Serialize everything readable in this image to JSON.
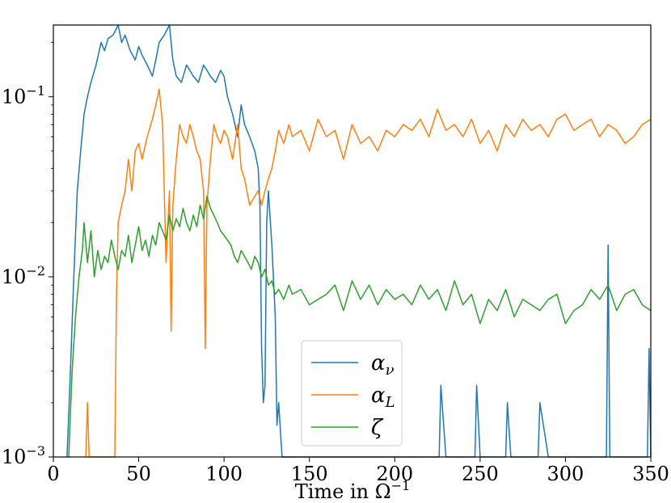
{
  "chart_data": {
    "type": "line",
    "title": "",
    "xlabel": "Time in Ω",
    "xlabel_exponent": "−1",
    "ylabel": "",
    "xlim": [
      0,
      350
    ],
    "ylim": [
      0.001,
      0.25
    ],
    "yscale": "log",
    "grid": false,
    "legend_position": "lower-center",
    "xticks": [
      {
        "value": 0,
        "label": "0"
      },
      {
        "value": 50,
        "label": "50"
      },
      {
        "value": 100,
        "label": "100"
      },
      {
        "value": 150,
        "label": "150"
      },
      {
        "value": 200,
        "label": "200"
      },
      {
        "value": 250,
        "label": "250"
      },
      {
        "value": 300,
        "label": "300"
      },
      {
        "value": 350,
        "label": "350"
      }
    ],
    "yticks": [
      {
        "value": 0.001,
        "base": "10",
        "exp": "−3"
      },
      {
        "value": 0.01,
        "base": "10",
        "exp": "−2"
      },
      {
        "value": 0.1,
        "base": "10",
        "exp": "−1"
      }
    ],
    "series": [
      {
        "name": "α",
        "name_sub": "ν",
        "color": "#1f77b4",
        "x": [
          8,
          10,
          12,
          14,
          16,
          18,
          20,
          22,
          25,
          28,
          30,
          32,
          35,
          38,
          40,
          42,
          45,
          48,
          50,
          52,
          55,
          58,
          60,
          62,
          65,
          68,
          70,
          72,
          75,
          78,
          80,
          82,
          85,
          88,
          90,
          92,
          95,
          98,
          100,
          102,
          105,
          108,
          110,
          112,
          115,
          118,
          120,
          121,
          122,
          123,
          124,
          125,
          126,
          128,
          130,
          131,
          132,
          134,
          136,
          140,
          145,
          150,
          160,
          170,
          180,
          190,
          200,
          210,
          220,
          226,
          227,
          230,
          240,
          247,
          248,
          250,
          260,
          265,
          266,
          268,
          270,
          280,
          284,
          285,
          290,
          300,
          310,
          320,
          324,
          325,
          326,
          330,
          340,
          348,
          349,
          350
        ],
        "y": [
          0.001,
          0.003,
          0.01,
          0.03,
          0.05,
          0.08,
          0.1,
          0.12,
          0.15,
          0.2,
          0.18,
          0.21,
          0.22,
          0.25,
          0.2,
          0.22,
          0.18,
          0.16,
          0.19,
          0.17,
          0.15,
          0.13,
          0.16,
          0.2,
          0.22,
          0.25,
          0.16,
          0.13,
          0.12,
          0.15,
          0.14,
          0.13,
          0.12,
          0.15,
          0.14,
          0.13,
          0.12,
          0.14,
          0.13,
          0.1,
          0.08,
          0.06,
          0.09,
          0.07,
          0.06,
          0.05,
          0.04,
          0.025,
          0.004,
          0.002,
          0.0025,
          0.02,
          0.03,
          0.015,
          0.006,
          0.0015,
          0.002,
          0.001,
          0.001,
          0.001,
          0.001,
          0.001,
          0.001,
          0.001,
          0.001,
          0.001,
          0.001,
          0.001,
          0.001,
          0.001,
          0.0025,
          0.001,
          0.001,
          0.001,
          0.0025,
          0.001,
          0.001,
          0.001,
          0.002,
          0.001,
          0.001,
          0.001,
          0.001,
          0.002,
          0.001,
          0.001,
          0.001,
          0.001,
          0.001,
          0.015,
          0.001,
          0.001,
          0.001,
          0.001,
          0.004,
          0.001
        ]
      },
      {
        "name": "α",
        "name_sub": "L",
        "color": "#ff7f0e",
        "x": [
          19,
          20,
          21,
          22,
          36,
          37,
          38,
          40,
          42,
          44,
          46,
          48,
          50,
          52,
          55,
          58,
          60,
          62,
          64,
          66,
          68,
          69,
          70,
          72,
          74,
          76,
          78,
          80,
          82,
          84,
          86,
          88,
          89,
          90,
          92,
          94,
          96,
          98,
          100,
          102,
          105,
          108,
          110,
          112,
          115,
          118,
          120,
          122,
          124,
          126,
          128,
          130,
          132,
          135,
          138,
          140,
          145,
          150,
          155,
          160,
          165,
          170,
          175,
          180,
          185,
          190,
          195,
          200,
          205,
          210,
          215,
          220,
          225,
          230,
          235,
          240,
          245,
          250,
          255,
          260,
          265,
          270,
          275,
          280,
          285,
          290,
          295,
          300,
          305,
          310,
          315,
          320,
          325,
          330,
          335,
          340,
          345,
          350
        ],
        "y": [
          0.001,
          0.002,
          0.001,
          0.001,
          0.001,
          0.008,
          0.02,
          0.025,
          0.03,
          0.045,
          0.03,
          0.05,
          0.055,
          0.045,
          0.06,
          0.075,
          0.09,
          0.11,
          0.07,
          0.012,
          0.03,
          0.005,
          0.025,
          0.045,
          0.07,
          0.06,
          0.055,
          0.07,
          0.06,
          0.05,
          0.045,
          0.03,
          0.004,
          0.025,
          0.045,
          0.07,
          0.06,
          0.055,
          0.065,
          0.06,
          0.045,
          0.07,
          0.04,
          0.035,
          0.025,
          0.028,
          0.03,
          0.025,
          0.03,
          0.035,
          0.04,
          0.05,
          0.065,
          0.055,
          0.07,
          0.06,
          0.065,
          0.05,
          0.075,
          0.06,
          0.065,
          0.045,
          0.07,
          0.055,
          0.06,
          0.05,
          0.065,
          0.06,
          0.07,
          0.065,
          0.075,
          0.06,
          0.085,
          0.065,
          0.07,
          0.06,
          0.075,
          0.055,
          0.065,
          0.05,
          0.07,
          0.06,
          0.075,
          0.065,
          0.07,
          0.06,
          0.075,
          0.08,
          0.065,
          0.07,
          0.075,
          0.06,
          0.07,
          0.065,
          0.055,
          0.06,
          0.07,
          0.075
        ]
      },
      {
        "name": "ζ",
        "name_sub": "",
        "color": "#2ca02c",
        "x": [
          9,
          11,
          13,
          15,
          17,
          18,
          20,
          22,
          24,
          26,
          28,
          30,
          32,
          34,
          36,
          38,
          40,
          42,
          44,
          46,
          48,
          50,
          52,
          54,
          56,
          58,
          60,
          62,
          64,
          66,
          68,
          70,
          72,
          74,
          76,
          78,
          80,
          82,
          84,
          86,
          88,
          90,
          92,
          94,
          96,
          98,
          100,
          102,
          104,
          106,
          108,
          110,
          112,
          114,
          116,
          118,
          120,
          122,
          124,
          126,
          128,
          130,
          132,
          135,
          138,
          140,
          145,
          150,
          155,
          160,
          165,
          170,
          175,
          180,
          185,
          190,
          195,
          200,
          205,
          210,
          215,
          220,
          225,
          230,
          235,
          240,
          245,
          250,
          255,
          260,
          265,
          270,
          275,
          280,
          285,
          290,
          295,
          300,
          305,
          310,
          315,
          320,
          325,
          330,
          335,
          340,
          345,
          350
        ],
        "y": [
          0.001,
          0.003,
          0.006,
          0.01,
          0.014,
          0.02,
          0.012,
          0.018,
          0.01,
          0.014,
          0.011,
          0.013,
          0.012,
          0.016,
          0.013,
          0.011,
          0.014,
          0.013,
          0.017,
          0.012,
          0.015,
          0.019,
          0.014,
          0.016,
          0.013,
          0.017,
          0.015,
          0.02,
          0.018,
          0.016,
          0.022,
          0.018,
          0.021,
          0.019,
          0.024,
          0.02,
          0.018,
          0.022,
          0.019,
          0.025,
          0.021,
          0.028,
          0.024,
          0.022,
          0.02,
          0.018,
          0.017,
          0.016,
          0.015,
          0.013,
          0.012,
          0.014,
          0.013,
          0.012,
          0.011,
          0.013,
          0.012,
          0.01,
          0.011,
          0.009,
          0.0095,
          0.008,
          0.0085,
          0.0075,
          0.009,
          0.008,
          0.0085,
          0.007,
          0.0075,
          0.008,
          0.009,
          0.0065,
          0.0095,
          0.0075,
          0.009,
          0.007,
          0.0085,
          0.0075,
          0.008,
          0.007,
          0.009,
          0.0075,
          0.0085,
          0.0065,
          0.0095,
          0.007,
          0.008,
          0.0055,
          0.0075,
          0.0065,
          0.0085,
          0.006,
          0.0075,
          0.007,
          0.0065,
          0.0075,
          0.008,
          0.0055,
          0.0065,
          0.007,
          0.0085,
          0.0075,
          0.009,
          0.0065,
          0.008,
          0.0085,
          0.007,
          0.0065
        ]
      }
    ]
  }
}
